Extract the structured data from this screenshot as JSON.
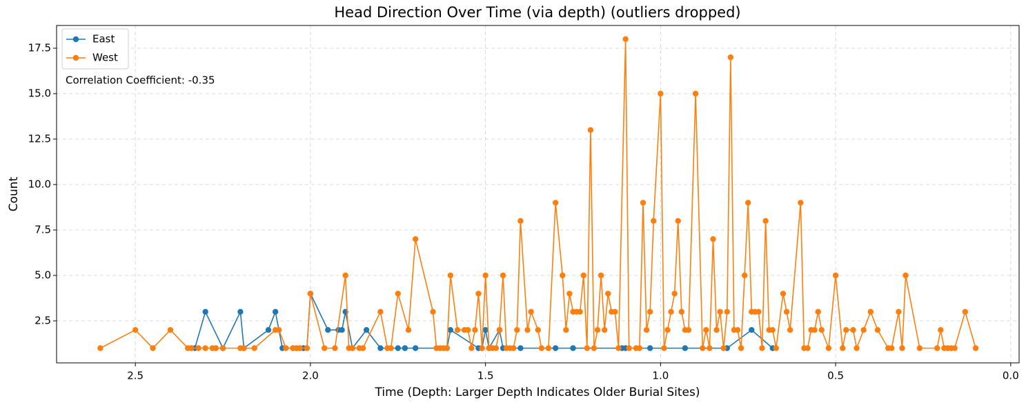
{
  "chart_data": {
    "type": "line",
    "title": "Head Direction Over Time (via depth) (outliers dropped)",
    "x_label": "Time (Depth: Larger Depth Indicates Older Burial Sites)",
    "y_label": "Count",
    "annotation": "Correlation Coefficient: -0.35",
    "xlim": [
      2.725,
      -0.024
    ],
    "ylim": [
      0.19,
      18.75
    ],
    "xticks": [
      2.5,
      {
        "value": 2.0,
        "label": "2.0"
      },
      1.5,
      {
        "value": 1.0,
        "label": "1.0"
      },
      0.5,
      {
        "value": 0.0,
        "label": "0.0"
      }
    ],
    "yticks": [
      2.5,
      {
        "value": 5.0,
        "label": "5.0"
      },
      7.5,
      {
        "value": 10.0,
        "label": "10.0"
      },
      12.5,
      {
        "value": 15.0,
        "label": "15.0"
      },
      17.5
    ],
    "grid": true,
    "legend": "upper left",
    "series": [
      {
        "name": "East",
        "color": "#1f77b4",
        "x": [
          2.35,
          2.34,
          2.33,
          2.3,
          2.25,
          2.2,
          2.19,
          2.12,
          2.1,
          2.08,
          2.05,
          2.04,
          2.03,
          2.02,
          2.01,
          2.0,
          1.95,
          1.92,
          1.91,
          1.9,
          1.88,
          1.84,
          1.8,
          1.75,
          1.73,
          1.7,
          1.61,
          1.6,
          1.52,
          1.51,
          1.5,
          1.49,
          1.46,
          1.45,
          1.4,
          1.3,
          1.25,
          1.11,
          1.1,
          1.03,
          0.93,
          0.81,
          0.74,
          0.68
        ],
        "values": [
          1,
          1,
          1,
          3,
          1,
          3,
          1,
          2,
          3,
          1,
          1,
          1,
          1,
          1,
          1,
          4,
          2,
          2,
          2,
          3,
          1,
          2,
          1,
          1,
          1,
          1,
          1,
          2,
          1,
          1,
          2,
          1,
          2,
          1,
          1,
          1,
          1,
          1,
          1,
          1,
          1,
          1,
          2,
          1
        ]
      },
      {
        "name": "West",
        "color": "#ff7f0e",
        "x": [
          2.6,
          2.5,
          2.45,
          2.4,
          2.35,
          2.34,
          2.32,
          2.3,
          2.28,
          2.27,
          2.25,
          2.2,
          2.19,
          2.16,
          2.1,
          2.09,
          2.07,
          2.05,
          2.04,
          2.03,
          2.01,
          2.0,
          1.96,
          1.93,
          1.9,
          1.89,
          1.88,
          1.86,
          1.85,
          1.8,
          1.78,
          1.77,
          1.75,
          1.72,
          1.7,
          1.65,
          1.64,
          1.63,
          1.62,
          1.61,
          1.6,
          1.58,
          1.56,
          1.55,
          1.54,
          1.53,
          1.52,
          1.51,
          1.5,
          1.49,
          1.48,
          1.47,
          1.46,
          1.45,
          1.44,
          1.43,
          1.42,
          1.41,
          1.4,
          1.38,
          1.37,
          1.35,
          1.34,
          1.32,
          1.3,
          1.28,
          1.27,
          1.26,
          1.25,
          1.24,
          1.23,
          1.22,
          1.21,
          1.2,
          1.19,
          1.18,
          1.17,
          1.16,
          1.15,
          1.14,
          1.13,
          1.12,
          1.1,
          1.09,
          1.07,
          1.06,
          1.05,
          1.04,
          1.03,
          1.02,
          1.0,
          0.99,
          0.98,
          0.97,
          0.96,
          0.95,
          0.94,
          0.93,
          0.92,
          0.9,
          0.88,
          0.87,
          0.86,
          0.85,
          0.84,
          0.83,
          0.82,
          0.81,
          0.8,
          0.79,
          0.78,
          0.77,
          0.76,
          0.75,
          0.74,
          0.73,
          0.72,
          0.71,
          0.7,
          0.69,
          0.68,
          0.67,
          0.65,
          0.64,
          0.63,
          0.6,
          0.59,
          0.58,
          0.57,
          0.56,
          0.55,
          0.54,
          0.52,
          0.5,
          0.48,
          0.47,
          0.45,
          0.44,
          0.42,
          0.4,
          0.38,
          0.35,
          0.34,
          0.32,
          0.31,
          0.3,
          0.26,
          0.21,
          0.2,
          0.19,
          0.18,
          0.17,
          0.16,
          0.13,
          0.1
        ],
        "values": [
          1,
          2,
          1,
          2,
          1,
          1,
          1,
          1,
          1,
          1,
          1,
          1,
          1,
          1,
          2,
          2,
          1,
          1,
          1,
          1,
          1,
          4,
          1,
          1,
          5,
          1,
          1,
          1,
          1,
          3,
          1,
          1,
          4,
          2,
          7,
          3,
          1,
          1,
          1,
          1,
          5,
          2,
          2,
          2,
          1,
          2,
          4,
          1,
          5,
          1,
          1,
          1,
          2,
          5,
          1,
          1,
          1,
          2,
          8,
          2,
          3,
          2,
          1,
          1,
          9,
          5,
          2,
          4,
          3,
          3,
          3,
          5,
          1,
          13,
          1,
          2,
          5,
          2,
          4,
          3,
          3,
          1,
          18,
          1,
          1,
          1,
          9,
          2,
          3,
          8,
          15,
          1,
          2,
          3,
          4,
          8,
          3,
          2,
          2,
          15,
          1,
          2,
          1,
          7,
          2,
          3,
          1,
          3,
          17,
          2,
          2,
          1,
          5,
          9,
          3,
          3,
          3,
          1,
          8,
          2,
          2,
          1,
          4,
          3,
          2,
          9,
          1,
          1,
          2,
          2,
          3,
          2,
          1,
          5,
          1,
          2,
          2,
          1,
          2,
          3,
          2,
          1,
          1,
          3,
          1,
          5,
          1,
          1,
          2,
          1,
          1,
          1,
          1,
          3,
          1
        ]
      }
    ]
  }
}
